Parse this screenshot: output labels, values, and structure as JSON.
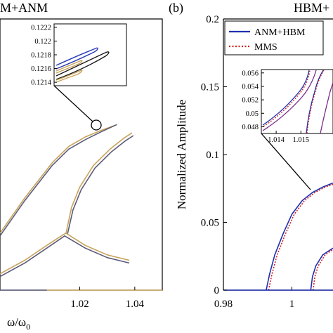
{
  "chart_data": [
    {
      "type": "line",
      "panel_label": "",
      "title": "M+ANM",
      "xlabel": "ω/ω",
      "xlabel_sub": "0",
      "ylabel": "",
      "xlim": [
        0.991,
        1.05
      ],
      "ylim": [
        0,
        0.2
      ],
      "x_ticks": [
        "1.02",
        "1.04"
      ],
      "x_tick_values": [
        1.02,
        1.04
      ],
      "grid": false,
      "series": [
        {
          "color": "#c8a35a",
          "role": "upper-branch-outer",
          "x": [
            0.991,
            1.0,
            1.01,
            1.016,
            1.022,
            1.028,
            1.033
          ],
          "y": [
            0.042,
            0.068,
            0.094,
            0.106,
            0.113,
            0.118,
            0.1217
          ]
        },
        {
          "color": "#5b5b7a",
          "role": "upper-branch-inner",
          "x": [
            0.991,
            1.0,
            1.01,
            1.016,
            1.022,
            1.028,
            1.0335
          ],
          "y": [
            0.04,
            0.066,
            0.092,
            0.104,
            0.111,
            0.117,
            0.1221
          ]
        },
        {
          "color": "#c8a35a",
          "role": "middle-branch-outer",
          "x": [
            1.015,
            1.017,
            1.02,
            1.025,
            1.031,
            1.036,
            1.039
          ],
          "y": [
            0.042,
            0.061,
            0.076,
            0.092,
            0.104,
            0.112,
            0.116
          ]
        },
        {
          "color": "#5b5b7a",
          "role": "middle-branch-inner",
          "x": [
            1.0155,
            1.0175,
            1.0205,
            1.0255,
            1.0315,
            1.0365,
            1.0395
          ],
          "y": [
            0.041,
            0.059,
            0.074,
            0.09,
            0.102,
            0.11,
            0.114
          ]
        },
        {
          "color": "#c8a35a",
          "role": "lower-branch-outer",
          "x": [
            0.991,
            1.0,
            1.008,
            1.014,
            1.015,
            1.022,
            1.03,
            1.038
          ],
          "y": [
            0.012,
            0.022,
            0.033,
            0.041,
            0.042,
            0.033,
            0.026,
            0.022
          ]
        },
        {
          "color": "#5b5b7a",
          "role": "lower-branch-inner",
          "x": [
            0.991,
            1.0,
            1.008,
            1.0138,
            1.0145,
            1.022,
            1.03,
            1.038
          ],
          "y": [
            0.01,
            0.02,
            0.031,
            0.039,
            0.04,
            0.031,
            0.024,
            0.02
          ]
        },
        {
          "color": "#c8a35a",
          "role": "trivial-orange",
          "x": [
            1.008,
            1.05
          ],
          "y": [
            0.0,
            0.0
          ]
        },
        {
          "color": "#5b5b7a",
          "role": "trivial-dark",
          "x": [
            0.991,
            1.008
          ],
          "y": [
            0.0,
            0.0
          ]
        }
      ],
      "inset": {
        "y_ticks": [
          "0.1214",
          "0.1216",
          "0.1218",
          "0.122",
          "0.1222"
        ],
        "y_tick_values": [
          0.1214,
          0.1216,
          0.1218,
          0.122,
          0.1222
        ]
      }
    },
    {
      "type": "line",
      "panel_label": "(b)",
      "title": "HBM+",
      "xlabel": "",
      "ylabel": "Normalized Amplitude",
      "xlim": [
        0.98,
        1.012
      ],
      "ylim": [
        0,
        0.2
      ],
      "x_ticks": [
        "0.98",
        "1"
      ],
      "x_tick_values": [
        0.98,
        1.0
      ],
      "y_ticks": [
        "0",
        "0.05",
        "0.1",
        "0.15",
        "0.2"
      ],
      "y_tick_values": [
        0,
        0.05,
        0.1,
        0.15,
        0.2
      ],
      "grid": false,
      "legend": {
        "placement": "top-left",
        "entries": [
          {
            "label": "ANM+HBM",
            "color": "#1f2fb0",
            "style": "solid"
          },
          {
            "label": "MMS",
            "color": "#cc1f1f",
            "style": "dotted"
          }
        ]
      },
      "series": [
        {
          "name": "ANM+HBM",
          "color": "#1f2fb0",
          "x": [
            0.9925,
            0.9935,
            0.995,
            0.9975,
            1.0,
            1.003,
            1.006,
            1.009,
            1.012
          ],
          "y": [
            0.0,
            0.012,
            0.026,
            0.042,
            0.056,
            0.066,
            0.072,
            0.076,
            0.079
          ]
        },
        {
          "name": "MMS",
          "color": "#cc1f1f",
          "x": [
            0.9932,
            0.9942,
            0.9957,
            0.9982,
            1.0007,
            1.0037,
            1.0067,
            1.0097,
            1.012
          ],
          "y": [
            0.0,
            0.012,
            0.026,
            0.042,
            0.056,
            0.066,
            0.072,
            0.076,
            0.078
          ]
        },
        {
          "name": "ANM+HBM",
          "color": "#1f2fb0",
          "x": [
            1.0055,
            1.006,
            1.007,
            1.009,
            1.012
          ],
          "y": [
            0.0,
            0.01,
            0.018,
            0.026,
            0.031
          ]
        },
        {
          "name": "MMS",
          "color": "#cc1f1f",
          "x": [
            1.0062,
            1.0067,
            1.0077,
            1.0097,
            1.012
          ],
          "y": [
            0.0,
            0.01,
            0.018,
            0.026,
            0.03
          ]
        },
        {
          "name": "ANM+HBM",
          "color": "#1f2fb0",
          "x": [
            0.98,
            1.012
          ],
          "y": [
            0.0,
            0.0
          ]
        }
      ],
      "inset": {
        "x_ticks": [
          "1.014",
          "1.015"
        ],
        "x_tick_values": [
          1.014,
          1.015
        ],
        "y_ticks": [
          "0.048",
          "0.05",
          "0.052",
          "0.054",
          "0.056"
        ],
        "y_tick_values": [
          0.048,
          0.05,
          0.052,
          0.054,
          0.056
        ],
        "xlim": [
          1.0134,
          1.0163
        ],
        "ylim": [
          0.047,
          0.0565
        ]
      }
    }
  ]
}
